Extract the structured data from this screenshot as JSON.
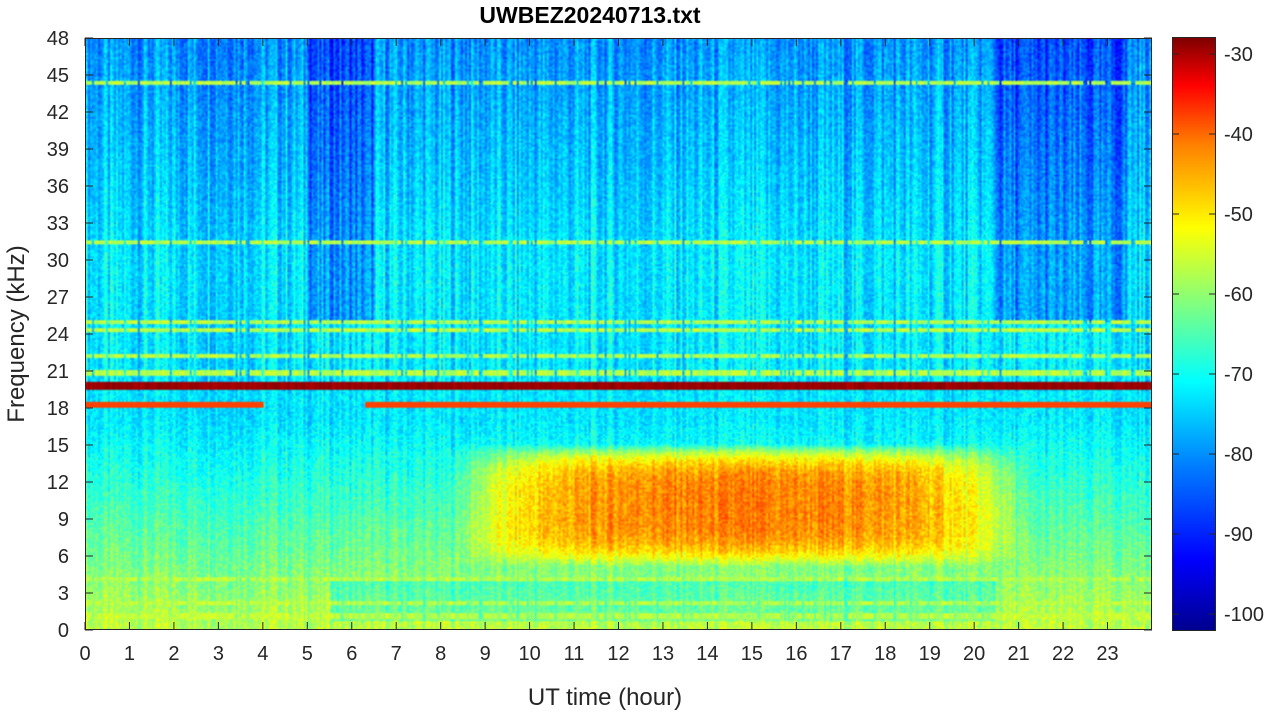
{
  "chart_data": {
    "type": "heatmap",
    "title": "UWBEZ20240713.txt",
    "xlabel": "UT time (hour)",
    "ylabel": "Frequency (kHz)",
    "xlim": [
      0,
      24
    ],
    "ylim": [
      0,
      48
    ],
    "x_ticks": [
      "0",
      "1",
      "2",
      "3",
      "4",
      "5",
      "6",
      "7",
      "8",
      "9",
      "10",
      "11",
      "12",
      "13",
      "14",
      "15",
      "16",
      "17",
      "18",
      "19",
      "20",
      "21",
      "22",
      "23"
    ],
    "y_ticks": [
      "0",
      "3",
      "6",
      "9",
      "12",
      "15",
      "18",
      "21",
      "24",
      "27",
      "30",
      "33",
      "36",
      "39",
      "42",
      "45",
      "48"
    ],
    "colorbar": {
      "ticks": [
        "-30",
        "-40",
        "-50",
        "-60",
        "-70",
        "-80",
        "-90",
        "-100"
      ],
      "range": [
        -102,
        -28
      ],
      "colormap": "jet"
    },
    "features": {
      "strong_tone_khz": 19.8,
      "secondary_tone_khz": 18.2,
      "other_tones_khz": [
        44.5,
        31.5,
        25.0,
        24.3,
        22.2,
        20.8,
        4.0,
        2.0,
        1.0
      ],
      "daytime_enhancement": {
        "hours": [
          9,
          20.5
        ],
        "khz": [
          5,
          15
        ],
        "level_db": -47
      },
      "background_high_freq_level_db": -80
    }
  }
}
